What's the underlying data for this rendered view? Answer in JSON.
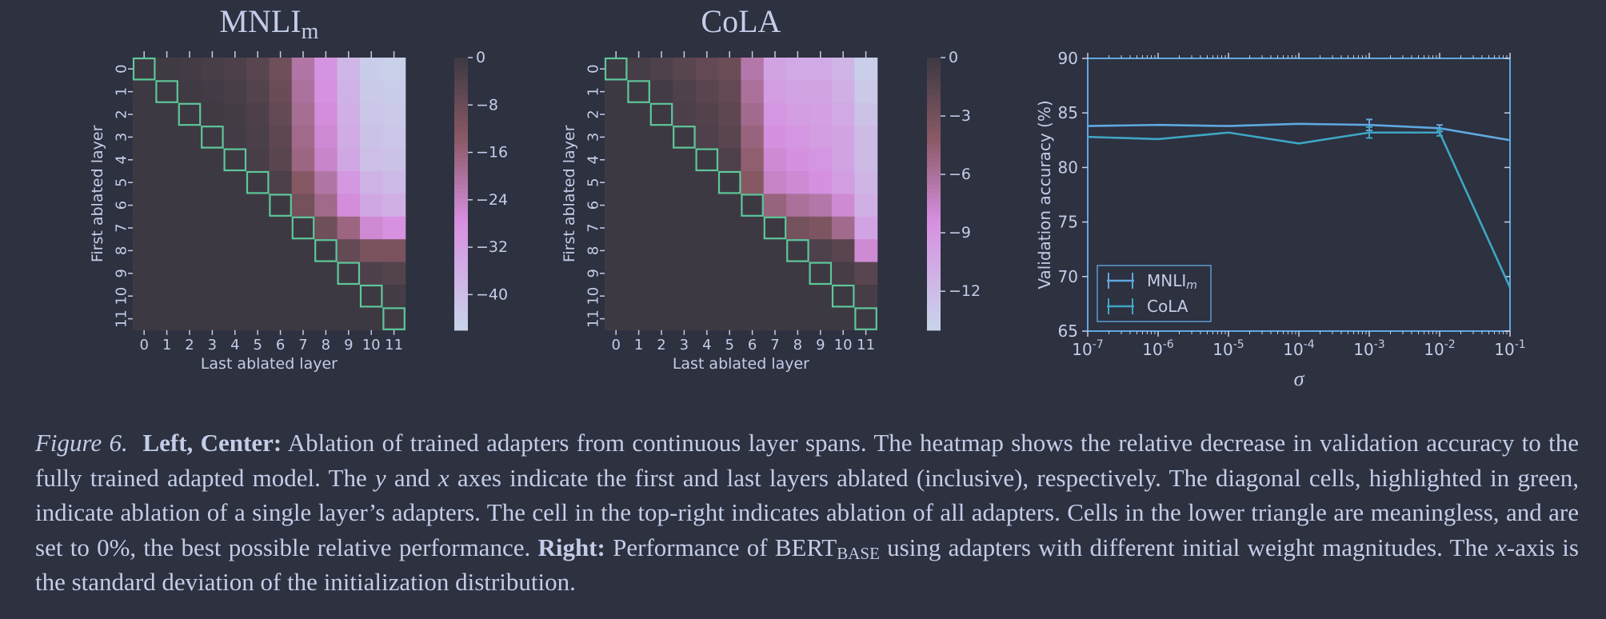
{
  "colors": {
    "background": "#2d3140",
    "text": "#c4cde8",
    "diagonal_outline": "#5ec79a",
    "mnli_line": "#5fa8e0",
    "cola_line": "#3fa6c4",
    "heat_low": "#3d3942",
    "heat_mid": "#8a5a66",
    "heat_pink": "#d68fe0",
    "heat_high": "#c8d4ea"
  },
  "chart_data": [
    {
      "type": "heatmap",
      "title": "MNLI",
      "title_sub": "m",
      "xlabel": "Last ablated layer",
      "ylabel": "First ablated layer",
      "x": [
        "0",
        "1",
        "2",
        "3",
        "4",
        "5",
        "6",
        "7",
        "8",
        "9",
        "10",
        "11"
      ],
      "y": [
        "0",
        "1",
        "2",
        "3",
        "4",
        "5",
        "6",
        "7",
        "8",
        "9",
        "10",
        "11"
      ],
      "colorbar": {
        "min": -46,
        "max": 0,
        "ticks": [
          "0",
          "−8",
          "−16",
          "−24",
          "−32",
          "−40"
        ],
        "tick_values": [
          0,
          -8,
          -16,
          -24,
          -32,
          -40
        ]
      },
      "values": [
        [
          0,
          -0.5,
          -1,
          -2,
          -3,
          -5,
          -9,
          -21,
          -29,
          -38,
          -44,
          -45
        ],
        [
          0,
          0,
          -0.5,
          -1,
          -2,
          -4,
          -8,
          -20,
          -28,
          -37,
          -43,
          -44
        ],
        [
          0,
          0,
          0,
          -0.5,
          -1.5,
          -3,
          -7,
          -19,
          -27,
          -36,
          -42,
          -43
        ],
        [
          0,
          0,
          0,
          0,
          -1,
          -2.5,
          -6,
          -18,
          -26,
          -35,
          -41,
          -42
        ],
        [
          0,
          0,
          0,
          0,
          0,
          -2,
          -5,
          -17,
          -25,
          -34,
          -40,
          -41
        ],
        [
          0,
          0,
          0,
          0,
          0,
          0,
          -3,
          -13,
          -21,
          -30,
          -37,
          -39
        ],
        [
          0,
          0,
          0,
          0,
          0,
          0,
          0,
          -10,
          -18,
          -27,
          -34,
          -36
        ],
        [
          0,
          0,
          0,
          0,
          0,
          0,
          0,
          0,
          -9,
          -17,
          -26,
          -28
        ],
        [
          0,
          0,
          0,
          0,
          0,
          0,
          0,
          0,
          0,
          -7,
          -11,
          -11
        ],
        [
          0,
          0,
          0,
          0,
          0,
          0,
          0,
          0,
          0,
          0,
          -3,
          -4
        ],
        [
          0,
          0,
          0,
          0,
          0,
          0,
          0,
          0,
          0,
          0,
          0,
          -1.5
        ],
        [
          0,
          0,
          0,
          0,
          0,
          0,
          0,
          0,
          0,
          0,
          0,
          -0.5
        ]
      ]
    },
    {
      "type": "heatmap",
      "title": "CoLA",
      "xlabel": "Last ablated layer",
      "ylabel": "First ablated layer",
      "x": [
        "0",
        "1",
        "2",
        "3",
        "4",
        "5",
        "6",
        "7",
        "8",
        "9",
        "10",
        "11"
      ],
      "y": [
        "0",
        "1",
        "2",
        "3",
        "4",
        "5",
        "6",
        "7",
        "8",
        "9",
        "10",
        "11"
      ],
      "colorbar": {
        "min": -14,
        "max": 0,
        "ticks": [
          "0",
          "−3",
          "−6",
          "−9",
          "−12"
        ],
        "tick_values": [
          0,
          -3,
          -6,
          -9,
          -12
        ]
      },
      "values": [
        [
          0,
          -0.5,
          -1,
          -1.5,
          -2,
          -2.5,
          -6.5,
          -10,
          -10.5,
          -10.5,
          -11.5,
          -13.5
        ],
        [
          0,
          0,
          -0.3,
          -1,
          -1.5,
          -2,
          -6,
          -9.5,
          -10,
          -10,
          -11,
          -13
        ],
        [
          0,
          0,
          0,
          -0.8,
          -1.2,
          -1.8,
          -5.5,
          -9,
          -9.5,
          -9.8,
          -10.5,
          -12.5
        ],
        [
          0,
          0,
          0,
          0,
          -1,
          -1.5,
          -5,
          -8.5,
          -9,
          -9.5,
          -10,
          -12
        ],
        [
          0,
          0,
          0,
          0,
          0,
          -1,
          -4.5,
          -8,
          -8.5,
          -9,
          -10,
          -12
        ],
        [
          0,
          0,
          0,
          0,
          0,
          0,
          -4,
          -7.5,
          -8,
          -8.5,
          -9.5,
          -11.5
        ],
        [
          0,
          0,
          0,
          0,
          0,
          0,
          0,
          -5,
          -6,
          -6.5,
          -8,
          -11
        ],
        [
          0,
          0,
          0,
          0,
          0,
          0,
          0,
          0,
          -3,
          -3.5,
          -5.5,
          -10
        ],
        [
          0,
          0,
          0,
          0,
          0,
          0,
          0,
          0,
          0,
          -1,
          -1.5,
          -8
        ],
        [
          0,
          0,
          0,
          0,
          0,
          0,
          0,
          0,
          0,
          0,
          -0.5,
          -1.5
        ],
        [
          0,
          0,
          0,
          0,
          0,
          0,
          0,
          0,
          0,
          0,
          0,
          -0.5
        ],
        [
          0,
          0,
          0,
          0,
          0,
          0,
          0,
          0,
          0,
          0,
          0,
          0
        ]
      ]
    },
    {
      "type": "line",
      "xlabel": "σ",
      "ylabel": "Validation accuracy (%)",
      "x_scale": "log",
      "x": [
        1e-07,
        1e-06,
        1e-05,
        0.0001,
        0.001,
        0.01,
        0.1
      ],
      "x_tick_base": "10",
      "x_tick_exp": [
        "-7",
        "-6",
        "-5",
        "-4",
        "-3",
        "-2",
        "-1"
      ],
      "ylim": [
        65,
        90
      ],
      "y_ticks": [
        "65",
        "70",
        "75",
        "80",
        "85",
        "90"
      ],
      "series": [
        {
          "name": "MNLI",
          "name_sub": "m",
          "values": [
            83.8,
            83.9,
            83.8,
            84.0,
            83.9,
            83.6,
            82.5
          ],
          "err": [
            0,
            0,
            0,
            0,
            0.5,
            0.3,
            0
          ]
        },
        {
          "name": "CoLA",
          "values": [
            82.8,
            82.6,
            83.2,
            82.2,
            83.2,
            83.2,
            69.0
          ],
          "err": [
            0,
            0,
            0,
            0,
            0.5,
            0.3,
            0
          ]
        }
      ],
      "legend": "lower-left"
    }
  ],
  "caption": {
    "fig_label": "Figure 6.",
    "bold1": "Left, Center:",
    "t1": " Ablation of trained adapters from continuous layer spans. The heatmap shows the relative decrease in validation accuracy to the fully trained adapted model. The ",
    "y_var": "y",
    "t2": " and ",
    "x_var": "x",
    "t3": " axes indicate the first and last layers ablated (inclusive), respectively. The diagonal cells, highlighted in green, indicate ablation of a single layer’s adapters. The cell in the top-right indicates ablation of all adapters. Cells in the lower triangle are meaningless, and are set to 0%, the best possible relative performance. ",
    "bold2": "Right:",
    "t4": " Performance of BERT",
    "bert_sub": "BASE",
    "t5": " using adapters with different initial weight magnitudes. The ",
    "x_var2": "x",
    "t6": "-axis is the standard deviation of the initialization distribution."
  }
}
